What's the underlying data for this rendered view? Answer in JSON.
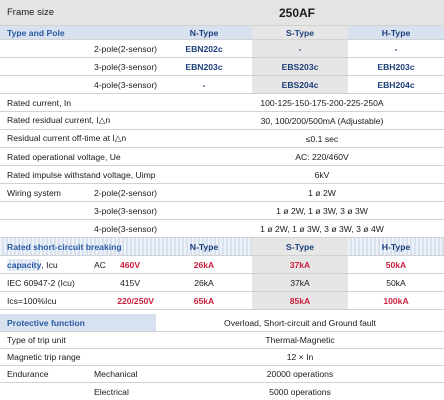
{
  "header": {
    "frame_size_label": "Frame size",
    "frame_size_value": "250AF"
  },
  "type_section": {
    "title": "Type and Pole",
    "col_n": "N-Type",
    "col_s": "S-Type",
    "col_h": "H-Type",
    "rows": [
      {
        "pole": "2-pole(2-sensor)",
        "n": "EBN202c",
        "s": "-",
        "h": "-"
      },
      {
        "pole": "3-pole(3-sensor)",
        "n": "EBN203c",
        "s": "EBS203c",
        "h": "EBH203c"
      },
      {
        "pole": "4-pole(3-sensor)",
        "n": "-",
        "s": "EBS204c",
        "h": "EBH204c"
      }
    ]
  },
  "ratings": {
    "rated_current": {
      "label": "Rated current, In",
      "value": "100-125-150-175-200-225-250A"
    },
    "residual_current": {
      "label": "Rated residual current, I△n",
      "value": "30, 100/200/500mA (Adjustable)"
    },
    "off_time": {
      "label": "Residual current off-time at I△n",
      "value": "≤0.1 sec"
    },
    "op_voltage": {
      "label": "Rated operational voltage, Ue",
      "value": "AC: 220/460V"
    },
    "impulse": {
      "label": "Rated impulse withstand voltage, Uimp",
      "value": "6kV"
    },
    "wiring": {
      "label": "Wiring system",
      "rows": [
        {
          "pole": "2-pole(2-sensor)",
          "value": "1 ø 2W"
        },
        {
          "pole": "3-pole(3-sensor)",
          "value": "1 ø 2W, 1 ø 3W, 3 ø 3W"
        },
        {
          "pole": "4-pole(3-sensor)",
          "value": "1 ø 2W, 1 ø 3W, 3 ø 3W, 3 ø 4W"
        }
      ]
    }
  },
  "breaking": {
    "title_line1": "Rated short-circuit breaking",
    "title_line2": "capacity",
    "title_suffix": ", Icu",
    "col_n": "N-Type",
    "col_s": "S-Type",
    "col_h": "H-Type",
    "ac_label": "AC",
    "row1": {
      "voltage": "460V",
      "n": "26kA",
      "s": "37kA",
      "h": "50kA"
    },
    "row2": {
      "label": "IEC 60947-2 (Icu)",
      "voltage": "415V",
      "n": "26kA",
      "s": "37kA",
      "h": "50kA"
    },
    "row3": {
      "label": "Ics=100%Icu",
      "voltage": "220/250V",
      "n": "65kA",
      "s": "85kA",
      "h": "100kA"
    }
  },
  "protection": {
    "title": "Protective function",
    "value": "Overload, Short-circuit and Ground fault",
    "trip_unit": {
      "label": "Type of trip unit",
      "value": "Thermal-Magnetic"
    },
    "magnetic_range": {
      "label": "Magnetic trip range",
      "value": "12 × In"
    },
    "endurance": {
      "label": "Endurance",
      "mechanical": {
        "label": "Mechanical",
        "value": "20000 operations"
      },
      "electrical": {
        "label": "Electrical",
        "value": "5000 operations"
      }
    }
  },
  "colors": {
    "section_blue": "#2a5aa4",
    "emphasis_red": "#cc1f3d",
    "header_grey": "#e4e4e4",
    "section_bar": "#d7e1ef",
    "s_type_shade": "#e6e6e6"
  }
}
